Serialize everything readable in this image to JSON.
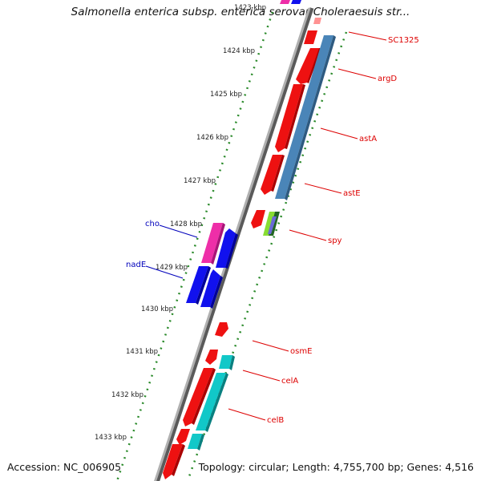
{
  "title": "Salmonella enterica subsp. enterica serovar Choleraesuis str...",
  "footer": {
    "accession": "Accession: NC_006905",
    "topology": "Topology: circular; Length: 4,755,700 bp; Genes: 4,516"
  },
  "colors": {
    "backbone": "#8a8a8a",
    "tick_dots": "#2a8a2a",
    "reverse_gene": "#ee1111",
    "forward_gene": "#1111ee",
    "label_right": "#dd0000",
    "label_left": "#0000bb",
    "operon_blue": "#4a85b8",
    "cyan_gene": "#11c8c8",
    "pink_gene": "#ee2ea8"
  },
  "kbp_ticks": [
    "1423 kbp",
    "1424 kbp",
    "1425 kbp",
    "1426 kbp",
    "1427 kbp",
    "1428 kbp",
    "1429 kbp",
    "1430 kbp",
    "1431 kbp",
    "1432 kbp",
    "1433 kbp"
  ],
  "gene_labels_right": [
    "SC1325",
    "argD",
    "astA",
    "astE",
    "spy",
    "osmE",
    "celA",
    "celB"
  ],
  "gene_labels_left": [
    "cho",
    "nadE"
  ]
}
